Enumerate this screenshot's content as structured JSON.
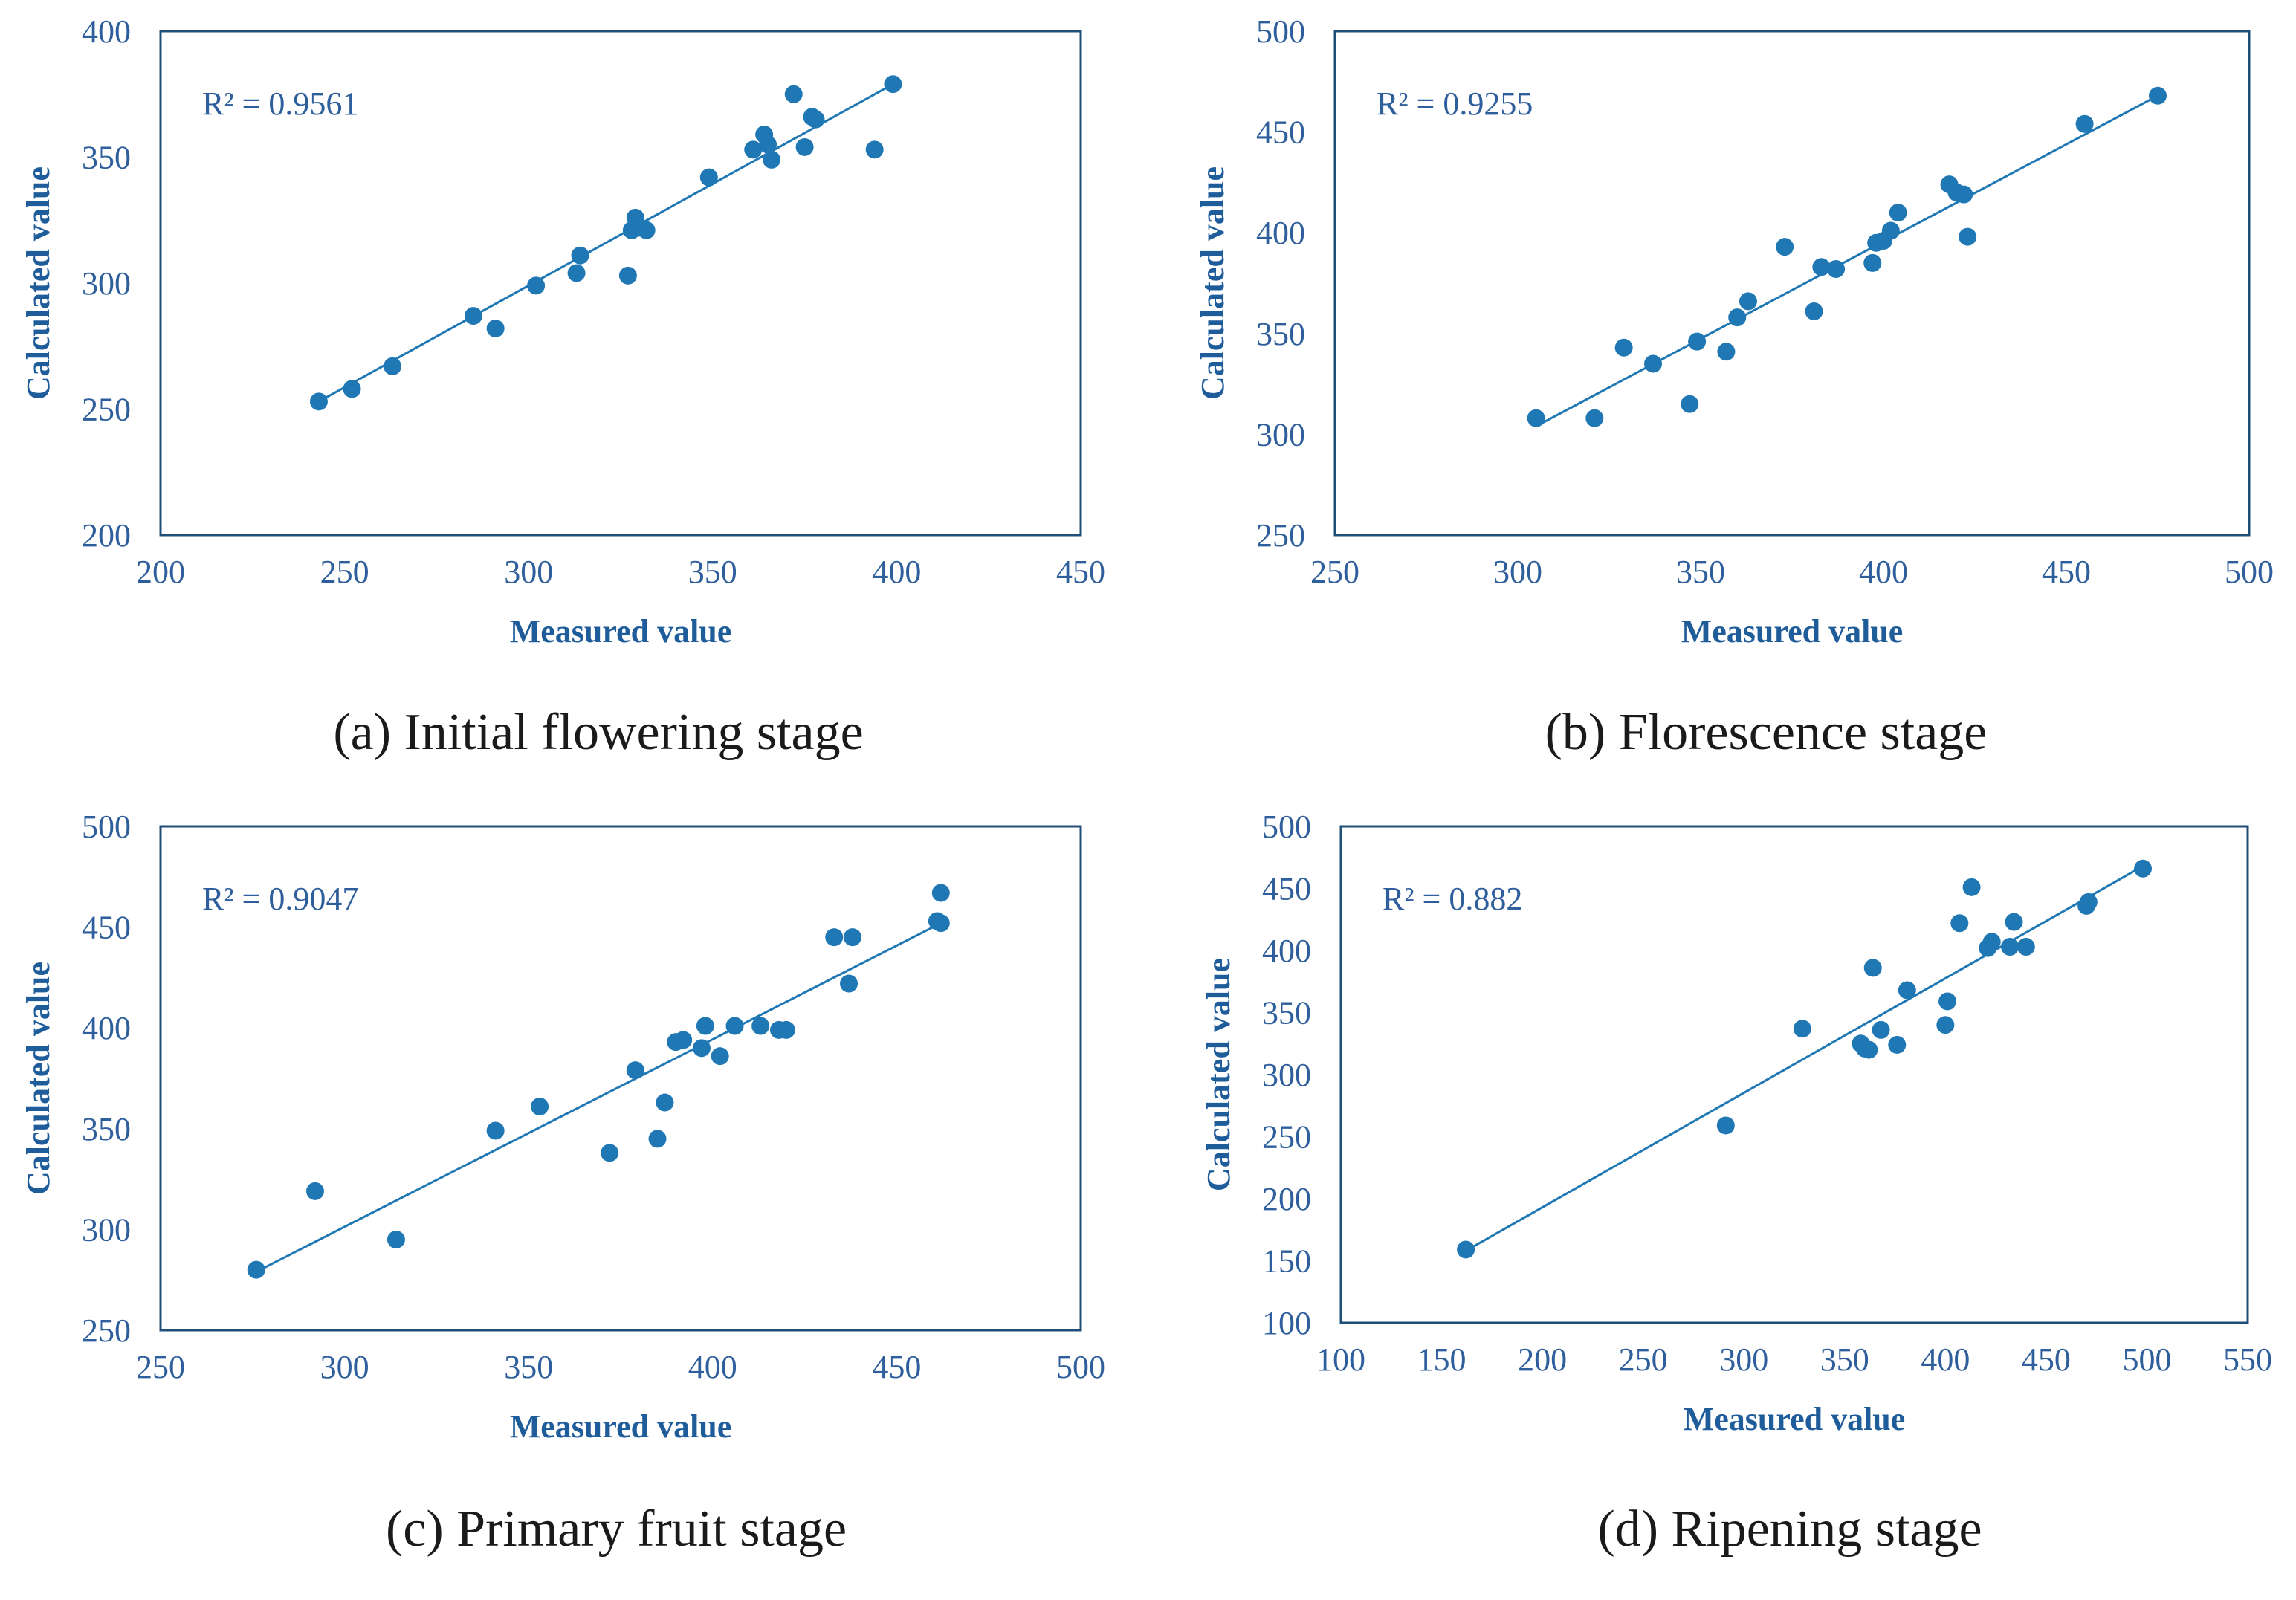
{
  "colors": {
    "marker": "#1f77b4",
    "axis": "#1f4e79",
    "text": "#2e5e9b",
    "caption": "#1a1a1a"
  },
  "chart_data": [
    {
      "type": "scatter",
      "caption": "(a) Initial flowering stage",
      "xlabel": "Measured value",
      "ylabel": "Calculated  value",
      "r2_label": "R² = 0.9561",
      "xlim": [
        200,
        450
      ],
      "ylim": [
        200,
        400
      ],
      "xticks": [
        "200",
        "250",
        "300",
        "350",
        "400",
        "450"
      ],
      "yticks": [
        "200",
        "250",
        "300",
        "350",
        "400"
      ],
      "trendline": [
        [
          243,
          253
        ],
        [
          399,
          379
        ]
      ],
      "points": [
        [
          243,
          253
        ],
        [
          252,
          258
        ],
        [
          263,
          267
        ],
        [
          285,
          287
        ],
        [
          291,
          282
        ],
        [
          302,
          299
        ],
        [
          313,
          304
        ],
        [
          314,
          311
        ],
        [
          327,
          303
        ],
        [
          328,
          321
        ],
        [
          329,
          326
        ],
        [
          330,
          322
        ],
        [
          332,
          321
        ],
        [
          349,
          342
        ],
        [
          361,
          353
        ],
        [
          364,
          359
        ],
        [
          365,
          355
        ],
        [
          366,
          349
        ],
        [
          372,
          375
        ],
        [
          375,
          354
        ],
        [
          377,
          366
        ],
        [
          378,
          365
        ],
        [
          394,
          353
        ],
        [
          399,
          379
        ]
      ]
    },
    {
      "type": "scatter",
      "caption": "(b) Florescence stage",
      "xlabel": "Measured value",
      "ylabel": "Calculated  value",
      "r2_label": "R² = 0.9255",
      "xlim": [
        250,
        500
      ],
      "ylim": [
        250,
        500
      ],
      "xticks": [
        "250",
        "300",
        "350",
        "400",
        "450",
        "500"
      ],
      "yticks": [
        "250",
        "300",
        "350",
        "400",
        "450",
        "500"
      ],
      "trendline": [
        [
          305,
          304
        ],
        [
          475,
          468
        ]
      ],
      "points": [
        [
          305,
          308
        ],
        [
          321,
          308
        ],
        [
          329,
          343
        ],
        [
          337,
          335
        ],
        [
          347,
          315
        ],
        [
          349,
          346
        ],
        [
          357,
          341
        ],
        [
          360,
          358
        ],
        [
          363,
          366
        ],
        [
          373,
          393
        ],
        [
          381,
          361
        ],
        [
          383,
          383
        ],
        [
          387,
          382
        ],
        [
          397,
          385
        ],
        [
          398,
          395
        ],
        [
          400,
          396
        ],
        [
          402,
          401
        ],
        [
          404,
          410
        ],
        [
          418,
          424
        ],
        [
          420,
          420
        ],
        [
          422,
          419
        ],
        [
          423,
          398
        ],
        [
          455,
          454
        ],
        [
          475,
          468
        ]
      ]
    },
    {
      "type": "scatter",
      "caption": "(c) Primary fruit stage",
      "xlabel": "Measured value",
      "ylabel": "Calculated  value",
      "r2_label": "R² = 0.9047",
      "xlim": [
        250,
        500
      ],
      "ylim": [
        250,
        500
      ],
      "xticks": [
        "250",
        "300",
        "350",
        "400",
        "450",
        "500"
      ],
      "yticks": [
        "250",
        "300",
        "350",
        "400",
        "450",
        "500"
      ],
      "trendline": [
        [
          276,
          279
        ],
        [
          462,
          452
        ]
      ],
      "points": [
        [
          276,
          280
        ],
        [
          292,
          319
        ],
        [
          314,
          295
        ],
        [
          341,
          349
        ],
        [
          353,
          361
        ],
        [
          372,
          338
        ],
        [
          379,
          379
        ],
        [
          385,
          345
        ],
        [
          387,
          363
        ],
        [
          390,
          393
        ],
        [
          392,
          394
        ],
        [
          397,
          390
        ],
        [
          398,
          401
        ],
        [
          402,
          386
        ],
        [
          406,
          401
        ],
        [
          413,
          401
        ],
        [
          418,
          399
        ],
        [
          420,
          399
        ],
        [
          433,
          445
        ],
        [
          437,
          422
        ],
        [
          438,
          445
        ],
        [
          461,
          453
        ],
        [
          462,
          452
        ],
        [
          462,
          467
        ]
      ]
    },
    {
      "type": "scatter",
      "caption": "(d) Ripening stage",
      "xlabel": "Measured value",
      "ylabel": "Calculated  value",
      "r2_label": "R² = 0.882",
      "xlim": [
        100,
        550
      ],
      "ylim": [
        100,
        500
      ],
      "xticks": [
        "100",
        "150",
        "200",
        "250",
        "300",
        "350",
        "400",
        "450",
        "500",
        "550"
      ],
      "yticks": [
        "100",
        "150",
        "200",
        "250",
        "300",
        "350",
        "400",
        "450",
        "500"
      ],
      "trendline": [
        [
          162,
          158
        ],
        [
          498,
          468
        ]
      ],
      "points": [
        [
          162,
          159
        ],
        [
          291,
          259
        ],
        [
          329,
          337
        ],
        [
          358,
          325
        ],
        [
          360,
          321
        ],
        [
          362,
          320
        ],
        [
          364,
          386
        ],
        [
          368,
          336
        ],
        [
          376,
          324
        ],
        [
          381,
          368
        ],
        [
          400,
          340
        ],
        [
          401,
          359
        ],
        [
          407,
          422
        ],
        [
          413,
          451
        ],
        [
          421,
          402
        ],
        [
          423,
          407
        ],
        [
          432,
          403
        ],
        [
          434,
          423
        ],
        [
          440,
          403
        ],
        [
          470,
          436
        ],
        [
          471,
          439
        ],
        [
          498,
          466
        ]
      ]
    }
  ]
}
